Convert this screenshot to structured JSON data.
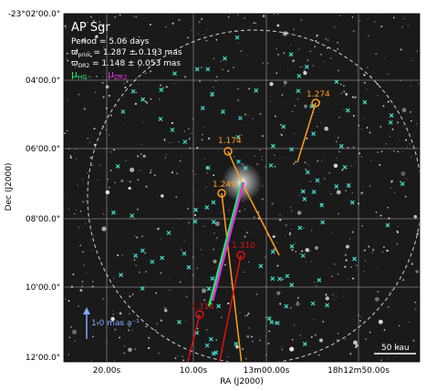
{
  "image": {
    "name": "AP Sgr",
    "period": "Period =    5.06 days",
    "prior": {
      "symbol": "ϖ",
      "sub": "prior",
      "text": " = 1.287 ± 0.193 mas"
    },
    "dr2": {
      "symbol": "ϖ",
      "sub": "DR2",
      "text": " = 1.148 ± 0.053 mas"
    },
    "legend": [
      {
        "symbol": "μ",
        "sub": "HG"
      },
      {
        "symbol": "μ",
        "sub": "DR2"
      }
    ],
    "x_label": "RA (J2000)",
    "y_label": "Dec (J2000)",
    "x_ticks": [
      "20.00s",
      "10.00s",
      "13m00.00s",
      "18h12m50.00s"
    ],
    "y_ticks": [
      "-23°02'00.0\"",
      "04'00.0\"",
      "06'00.0\"",
      "08'00.0\"",
      "10'00.0\"",
      "12'00.0\""
    ],
    "star_labels": [
      "1.274",
      "1.174",
      "1.249",
      "1.310",
      "1.314"
    ],
    "pm_scale": "1.0 mas a⁻¹",
    "scale_bar": "50 kau"
  }
}
